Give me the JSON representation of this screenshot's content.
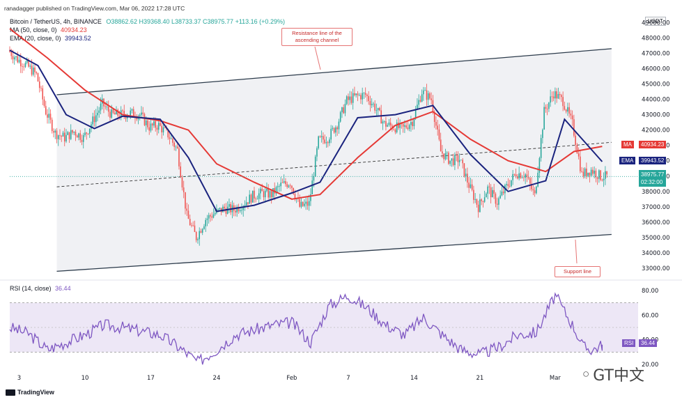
{
  "header": {
    "publisher": "ranadagger published on TradingView.com, Mar 06, 2022 17:28 UTC",
    "symbol_line": "Bitcoin / TetherUS, 4h, BINANCE",
    "ohlc": "O38862.62 H39368.40 L38733.37 C38975.77 +113.16 (+0.29%)",
    "ma_line": "MA (50, close, 0)",
    "ma_value": "40934.23",
    "ema_line": "EMA (20, close, 0)",
    "ema_value": "39943.52",
    "currency": "USDT"
  },
  "price_tags": {
    "ma_label": "MA",
    "ma_value": "40934.23",
    "ema_label": "EMA",
    "ema_value": "39943.52",
    "last_price": "38975.77",
    "countdown": "02:32:00"
  },
  "callouts": {
    "resistance": "Resistance line of the ascending channel",
    "support": "Support line"
  },
  "rsi": {
    "label": "RSI (14, close)",
    "value": "36.44",
    "tag_label": "RSI",
    "tag_value": "36.44"
  },
  "footer": {
    "brand": "TradingView",
    "watermark": "GT中文"
  },
  "colors": {
    "up": "#26a69a",
    "down": "#ef5350",
    "ma": "#e53935",
    "ema": "#1a237e",
    "channel": "#2b3a4a",
    "rsi": "#7e57c2"
  },
  "chart_data": {
    "type": "candlestick",
    "title": "Bitcoin / TetherUS, 4h, BINANCE",
    "price_axis": {
      "ticks": [
        33000,
        34000,
        35000,
        36000,
        37000,
        38000,
        39000,
        40000,
        41000,
        42000,
        43000,
        44000,
        45000,
        46000,
        47000,
        48000,
        49000
      ],
      "range": [
        32500,
        49200
      ]
    },
    "x_ticks": [
      "3",
      "10",
      "17",
      "24",
      "Feb",
      "7",
      "14",
      "21",
      "Mar"
    ],
    "price_path": [
      {
        "d": "Jan 2",
        "p": 47200
      },
      {
        "d": "Jan 3",
        "p": 46600
      },
      {
        "d": "Jan 4",
        "p": 46200
      },
      {
        "d": "Jan 5",
        "p": 45600
      },
      {
        "d": "Jan 6",
        "p": 43200
      },
      {
        "d": "Jan 7",
        "p": 41800
      },
      {
        "d": "Jan 8",
        "p": 41500
      },
      {
        "d": "Jan 9",
        "p": 41900
      },
      {
        "d": "Jan 10",
        "p": 41500
      },
      {
        "d": "Jan 11",
        "p": 42600
      },
      {
        "d": "Jan 12",
        "p": 43700
      },
      {
        "d": "Jan 13",
        "p": 43000
      },
      {
        "d": "Jan 14",
        "p": 43000
      },
      {
        "d": "Jan 15",
        "p": 43100
      },
      {
        "d": "Jan 16",
        "p": 43000
      },
      {
        "d": "Jan 17",
        "p": 42200
      },
      {
        "d": "Jan 18",
        "p": 42300
      },
      {
        "d": "Jan 19",
        "p": 41700
      },
      {
        "d": "Jan 20",
        "p": 40700
      },
      {
        "d": "Jan 21",
        "p": 36400
      },
      {
        "d": "Jan 22",
        "p": 35000
      },
      {
        "d": "Jan 23",
        "p": 36200
      },
      {
        "d": "Jan 24",
        "p": 36600
      },
      {
        "d": "Jan 25",
        "p": 36900
      },
      {
        "d": "Jan 26",
        "p": 36800
      },
      {
        "d": "Jan 27",
        "p": 37200
      },
      {
        "d": "Jan 28",
        "p": 37700
      },
      {
        "d": "Jan 29",
        "p": 37900
      },
      {
        "d": "Jan 30",
        "p": 37800
      },
      {
        "d": "Jan 31",
        "p": 38400
      },
      {
        "d": "Feb 1",
        "p": 38600
      },
      {
        "d": "Feb 2",
        "p": 37000
      },
      {
        "d": "Feb 3",
        "p": 37200
      },
      {
        "d": "Feb 4",
        "p": 41300
      },
      {
        "d": "Feb 5",
        "p": 41500
      },
      {
        "d": "Feb 6",
        "p": 42400
      },
      {
        "d": "Feb 7",
        "p": 43900
      },
      {
        "d": "Feb 8",
        "p": 44200
      },
      {
        "d": "Feb 9",
        "p": 44300
      },
      {
        "d": "Feb 10",
        "p": 43500
      },
      {
        "d": "Feb 11",
        "p": 42400
      },
      {
        "d": "Feb 12",
        "p": 42200
      },
      {
        "d": "Feb 13",
        "p": 42100
      },
      {
        "d": "Feb 14",
        "p": 42600
      },
      {
        "d": "Feb 15",
        "p": 44500
      },
      {
        "d": "Feb 16",
        "p": 44000
      },
      {
        "d": "Feb 17",
        "p": 40600
      },
      {
        "d": "Feb 18",
        "p": 40000
      },
      {
        "d": "Feb 19",
        "p": 40100
      },
      {
        "d": "Feb 20",
        "p": 38400
      },
      {
        "d": "Feb 21",
        "p": 37000
      },
      {
        "d": "Feb 22",
        "p": 38200
      },
      {
        "d": "Feb 23",
        "p": 37300
      },
      {
        "d": "Feb 24",
        "p": 38300
      },
      {
        "d": "Feb 25",
        "p": 39200
      },
      {
        "d": "Feb 26",
        "p": 39100
      },
      {
        "d": "Feb 27",
        "p": 37700
      },
      {
        "d": "Feb 28",
        "p": 43200
      },
      {
        "d": "Mar 1",
        "p": 44400
      },
      {
        "d": "Mar 2",
        "p": 43900
      },
      {
        "d": "Mar 3",
        "p": 42400
      },
      {
        "d": "Mar 4",
        "p": 39100
      },
      {
        "d": "Mar 5",
        "p": 39400
      },
      {
        "d": "Mar 6",
        "p": 38976
      }
    ],
    "ma50_path": [
      {
        "d": "Jan 2",
        "p": 48600
      },
      {
        "d": "Jan 6",
        "p": 46700
      },
      {
        "d": "Jan 10",
        "p": 44600
      },
      {
        "d": "Jan 14",
        "p": 43000
      },
      {
        "d": "Jan 18",
        "p": 42600
      },
      {
        "d": "Jan 21",
        "p": 42000
      },
      {
        "d": "Jan 24",
        "p": 39800
      },
      {
        "d": "Jan 28",
        "p": 38600
      },
      {
        "d": "Feb 1",
        "p": 37500
      },
      {
        "d": "Feb 4",
        "p": 37800
      },
      {
        "d": "Feb 8",
        "p": 40200
      },
      {
        "d": "Feb 12",
        "p": 42300
      },
      {
        "d": "Feb 16",
        "p": 43200
      },
      {
        "d": "Feb 20",
        "p": 41400
      },
      {
        "d": "Feb 24",
        "p": 40000
      },
      {
        "d": "Feb 28",
        "p": 39300
      },
      {
        "d": "Mar 3",
        "p": 40600
      },
      {
        "d": "Mar 6",
        "p": 40934
      }
    ],
    "ema20_path": [
      {
        "d": "Jan 2",
        "p": 47200
      },
      {
        "d": "Jan 5",
        "p": 46200
      },
      {
        "d": "Jan 8",
        "p": 43000
      },
      {
        "d": "Jan 11",
        "p": 42100
      },
      {
        "d": "Jan 14",
        "p": 42900
      },
      {
        "d": "Jan 18",
        "p": 42700
      },
      {
        "d": "Jan 21",
        "p": 40200
      },
      {
        "d": "Jan 24",
        "p": 36700
      },
      {
        "d": "Jan 28",
        "p": 37100
      },
      {
        "d": "Feb 1",
        "p": 37900
      },
      {
        "d": "Feb 4",
        "p": 38600
      },
      {
        "d": "Feb 8",
        "p": 42800
      },
      {
        "d": "Feb 12",
        "p": 43000
      },
      {
        "d": "Feb 16",
        "p": 43600
      },
      {
        "d": "Feb 20",
        "p": 40400
      },
      {
        "d": "Feb 24",
        "p": 38000
      },
      {
        "d": "Feb 28",
        "p": 38700
      },
      {
        "d": "Mar 2",
        "p": 42700
      },
      {
        "d": "Mar 6",
        "p": 39944
      }
    ],
    "channel": {
      "resistance": [
        {
          "d": "Jan 7",
          "p": 44300
        },
        {
          "d": "Mar 7",
          "p": 47300
        }
      ],
      "support": [
        {
          "d": "Jan 7",
          "p": 32800
        },
        {
          "d": "Mar 7",
          "p": 35200
        }
      ],
      "midline": [
        {
          "d": "Jan 7",
          "p": 38300
        },
        {
          "d": "Mar 7",
          "p": 41200
        }
      ]
    },
    "rsi_panel": {
      "ticks": [
        20,
        40,
        60,
        80
      ],
      "band": [
        30,
        70
      ],
      "range": [
        15,
        85
      ],
      "path": [
        {
          "d": "Jan 2",
          "p": 50
        },
        {
          "d": "Jan 4",
          "p": 45
        },
        {
          "d": "Jan 6",
          "p": 32
        },
        {
          "d": "Jan 8",
          "p": 38
        },
        {
          "d": "Jan 10",
          "p": 44
        },
        {
          "d": "Jan 12",
          "p": 52
        },
        {
          "d": "Jan 14",
          "p": 50
        },
        {
          "d": "Jan 16",
          "p": 47
        },
        {
          "d": "Jan 18",
          "p": 44
        },
        {
          "d": "Jan 20",
          "p": 34
        },
        {
          "d": "Jan 22",
          "p": 22
        },
        {
          "d": "Jan 24",
          "p": 32
        },
        {
          "d": "Jan 26",
          "p": 44
        },
        {
          "d": "Jan 28",
          "p": 48
        },
        {
          "d": "Jan 30",
          "p": 52
        },
        {
          "d": "Feb 1",
          "p": 54
        },
        {
          "d": "Feb 3",
          "p": 38
        },
        {
          "d": "Feb 5",
          "p": 68
        },
        {
          "d": "Feb 7",
          "p": 76
        },
        {
          "d": "Feb 9",
          "p": 66
        },
        {
          "d": "Feb 11",
          "p": 52
        },
        {
          "d": "Feb 13",
          "p": 44
        },
        {
          "d": "Feb 15",
          "p": 58
        },
        {
          "d": "Feb 17",
          "p": 44
        },
        {
          "d": "Feb 19",
          "p": 32
        },
        {
          "d": "Feb 21",
          "p": 28
        },
        {
          "d": "Feb 23",
          "p": 34
        },
        {
          "d": "Feb 25",
          "p": 44
        },
        {
          "d": "Feb 27",
          "p": 46
        },
        {
          "d": "Mar 1",
          "p": 76
        },
        {
          "d": "Mar 3",
          "p": 50
        },
        {
          "d": "Mar 4",
          "p": 34
        },
        {
          "d": "Mar 5",
          "p": 32
        },
        {
          "d": "Mar 6",
          "p": 36
        }
      ]
    }
  }
}
